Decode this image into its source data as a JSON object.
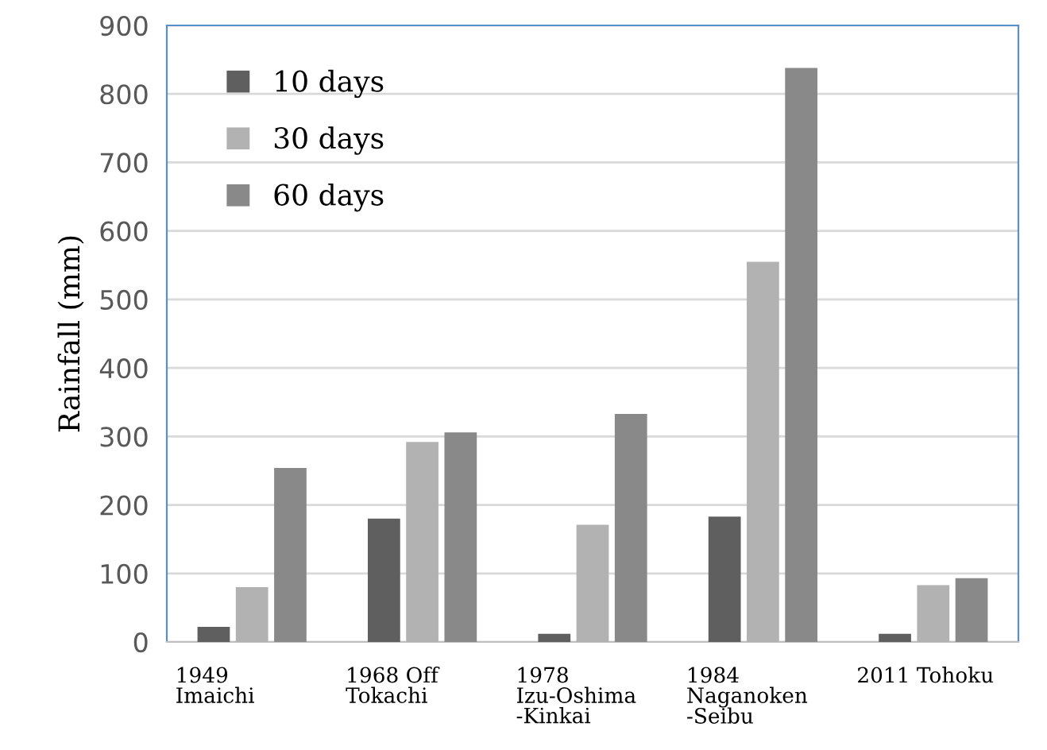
{
  "chart_data": {
    "type": "bar",
    "ylabel": "Rainfall (mm)",
    "categories": [
      "1949\nImaichi",
      "1968 Off\nTokachi",
      "1978\nIzu-Oshima\n-Kinkai",
      "1984\nNaganoken\n-Seibu",
      "2011 Tohoku"
    ],
    "series": [
      {
        "name": "10 days",
        "color": "#5f5f5f",
        "values": [
          22,
          180,
          12,
          183,
          12
        ]
      },
      {
        "name": "30 days",
        "color": "#b2b2b2",
        "values": [
          80,
          292,
          171,
          555,
          83
        ]
      },
      {
        "name": "60 days",
        "color": "#898989",
        "values": [
          254,
          306,
          333,
          838,
          93
        ]
      }
    ],
    "ylim": [
      0,
      900
    ],
    "yticks": [
      0,
      100,
      200,
      300,
      400,
      500,
      600,
      700,
      800,
      900
    ],
    "grid": "y",
    "legend": "top left"
  }
}
